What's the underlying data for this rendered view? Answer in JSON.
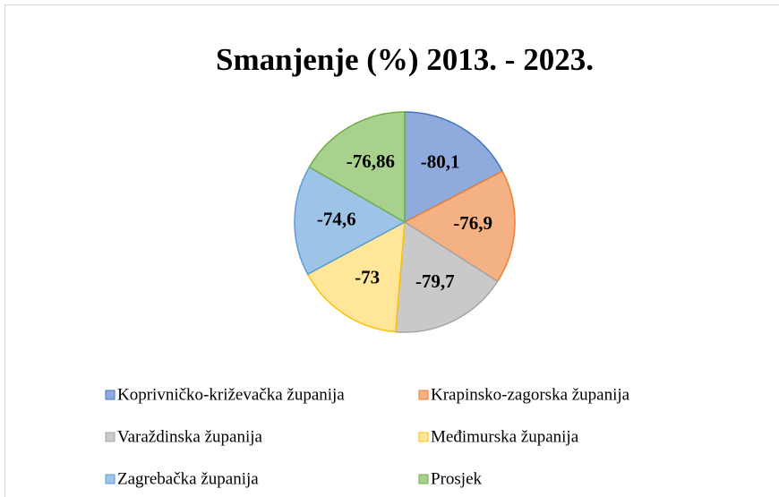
{
  "chart_data": {
    "type": "pie",
    "title": "Smanjenje (%) 2013. - 2023.",
    "categories": [
      "Koprivničko-križevačka županija",
      "Krapinsko-zagorska županija",
      "Varaždinska županija",
      "Međimurska županija",
      "Zagrebačka županija",
      "Prosjek"
    ],
    "values": [
      -80.1,
      -76.9,
      -79.7,
      -73,
      -74.6,
      -76.86
    ],
    "value_labels": [
      "-80,1",
      "-76,9",
      "-79,7",
      "-73",
      "-74,6",
      "-76,86"
    ],
    "colors": [
      "#8faadc",
      "#f4b183",
      "#c9c9c9",
      "#ffe699",
      "#9dc3e6",
      "#a9d18e"
    ],
    "edge_colors": [
      "#4472c4",
      "#ed7d31",
      "#a5a5a5",
      "#ffc000",
      "#5b9bd5",
      "#70ad47"
    ],
    "legend": "bottom"
  }
}
